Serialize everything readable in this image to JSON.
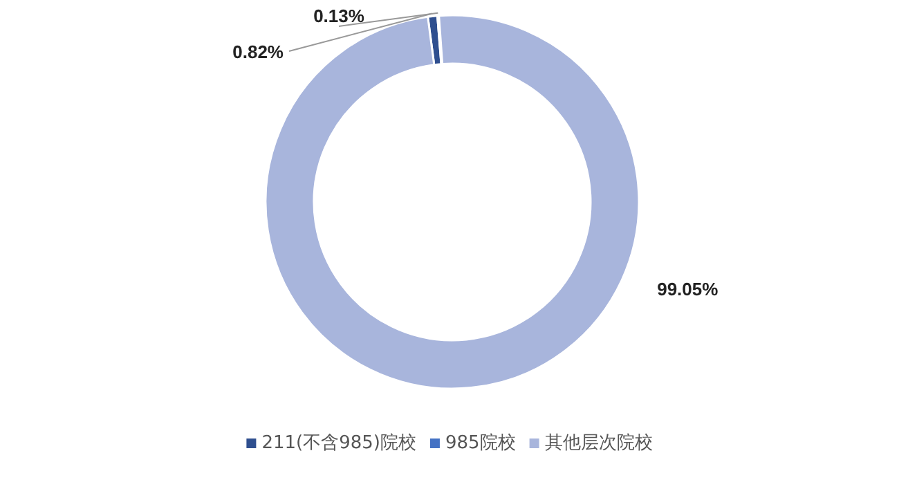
{
  "chart_data": {
    "type": "donut",
    "categories": [
      "211(不含985)院校",
      "985院校",
      "其他层次院校"
    ],
    "values": [
      0.82,
      0.13,
      99.05
    ],
    "colors": [
      "#2f4f8f",
      "#4472c4",
      "#a8b5dc"
    ],
    "value_labels": [
      "0.82%",
      "0.13%",
      "99.05%"
    ],
    "legend": "bottom"
  }
}
